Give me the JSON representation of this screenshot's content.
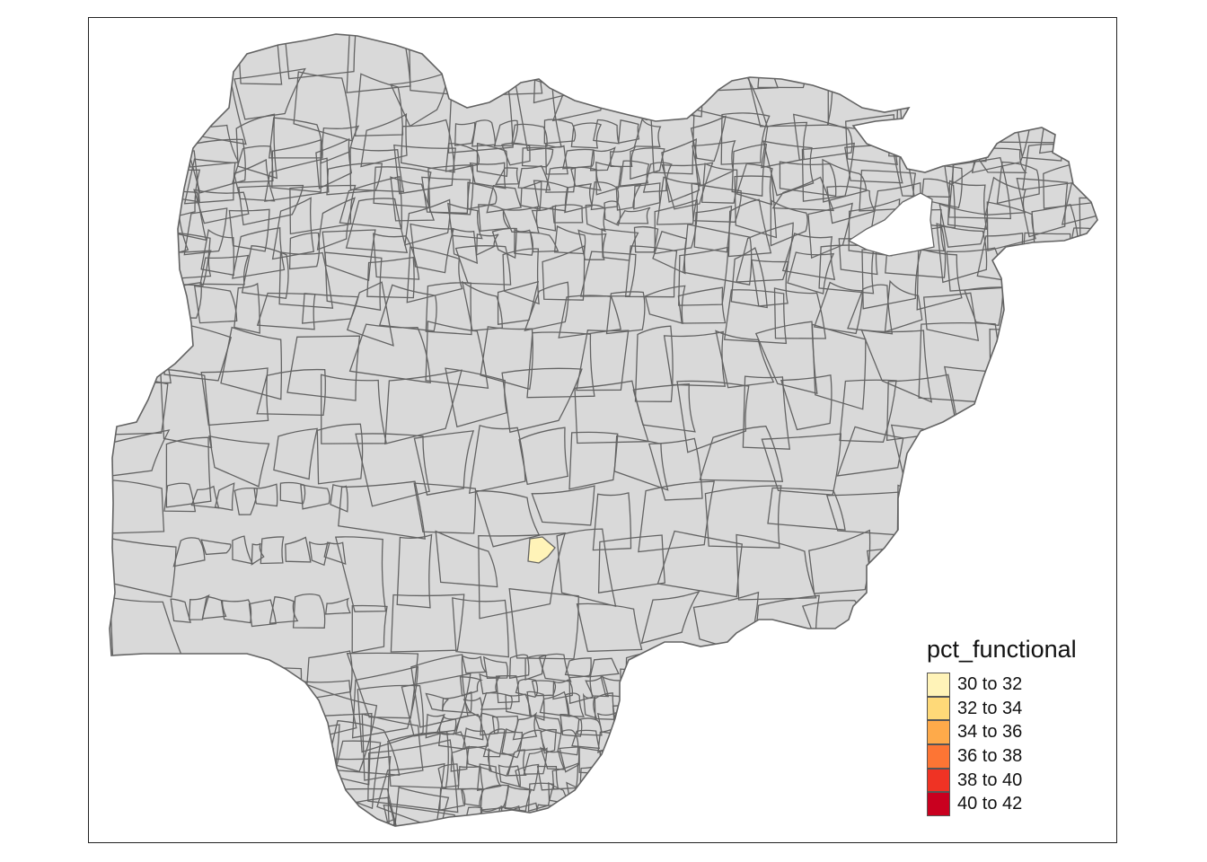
{
  "map": {
    "base_fill": "#d9d9d9",
    "border_color": "#636363",
    "highlight_fill": "#fff0b0",
    "highlight_value_bin": "30 to 32"
  },
  "legend": {
    "title": "pct_functional",
    "items": [
      {
        "label": "30 to 32",
        "color": "#fff3b8"
      },
      {
        "label": "32 to 34",
        "color": "#fed978"
      },
      {
        "label": "34 to 36",
        "color": "#feaa4a"
      },
      {
        "label": "36 to 38",
        "color": "#fd7534"
      },
      {
        "label": "38 to 40",
        "color": "#ef3324"
      },
      {
        "label": "40 to 42",
        "color": "#c9001f"
      }
    ]
  }
}
